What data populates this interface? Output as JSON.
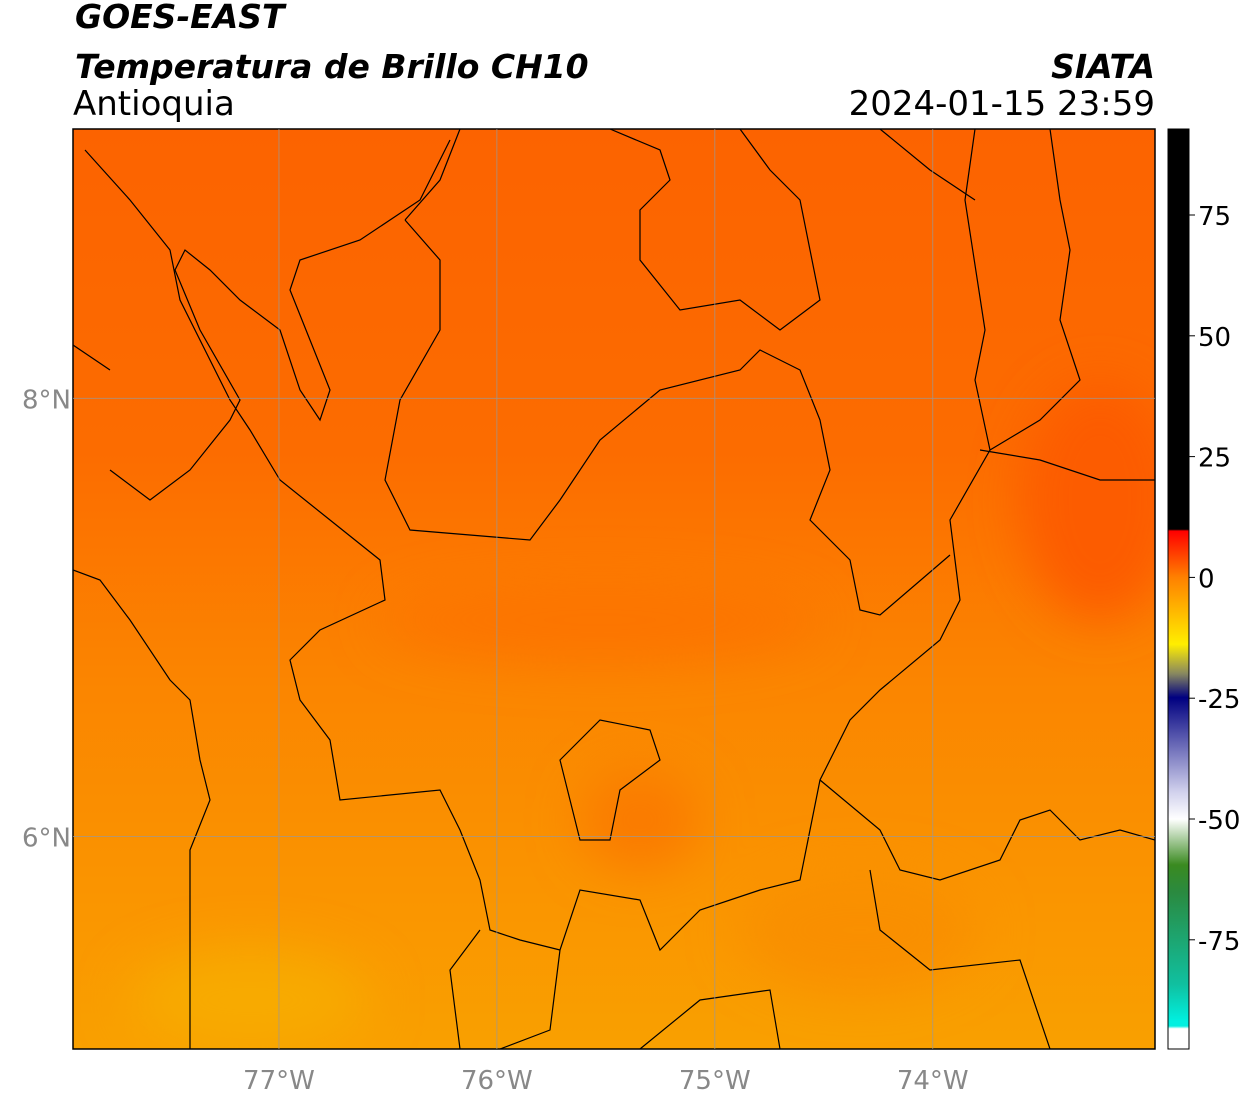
{
  "header": {
    "title": "GOES-EAST",
    "subtitle": "Temperatura de Brillo CH10",
    "region": "Antioquia",
    "source": "SIATA",
    "timestamp": "2024-01-15 23:59"
  },
  "map": {
    "xlim": [
      -77.945,
      -72.98
    ],
    "ylim": [
      5.03,
      9.23
    ],
    "xticks": [
      {
        "value": -77,
        "label": "77°W"
      },
      {
        "value": -76,
        "label": "76°W"
      },
      {
        "value": -75,
        "label": "75°W"
      },
      {
        "value": -74,
        "label": "74°W"
      }
    ],
    "yticks": [
      {
        "value": 8,
        "label": "8°N"
      },
      {
        "value": 6,
        "label": "6°N"
      }
    ]
  },
  "colorbar": {
    "lim": [
      -97.6,
      92.8
    ],
    "ticks": [
      -75,
      -50,
      -25,
      0,
      25,
      50,
      75
    ]
  }
}
